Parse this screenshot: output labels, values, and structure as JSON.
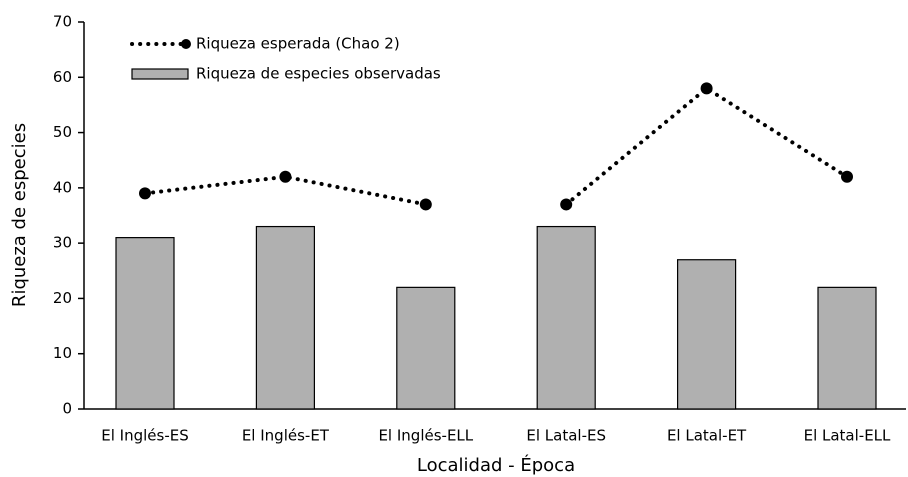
{
  "chart_data": {
    "type": "bar_line",
    "categories": [
      "El Inglés-ES",
      "El Inglés-ET",
      "El Inglés-ELL",
      "El Latal-ES",
      "El Latal-ET",
      "El Latal-ELL"
    ],
    "series": [
      {
        "name": "Riqueza esperada (Chao 2)",
        "type": "line",
        "color": "#000000",
        "values": [
          39,
          42,
          37,
          37,
          58,
          42
        ]
      },
      {
        "name": "Riqueza de especies observadas",
        "type": "bar",
        "color": "#b0b0b0",
        "values": [
          31,
          33,
          22,
          33,
          27,
          22
        ]
      }
    ],
    "x_label": "Localidad - Época",
    "y_label": "Riqueza  de especies",
    "ylim": [
      0,
      70
    ],
    "yticks": [
      0,
      10,
      20,
      30,
      40,
      50,
      60,
      70
    ],
    "grid": false,
    "legend": "top-left"
  }
}
